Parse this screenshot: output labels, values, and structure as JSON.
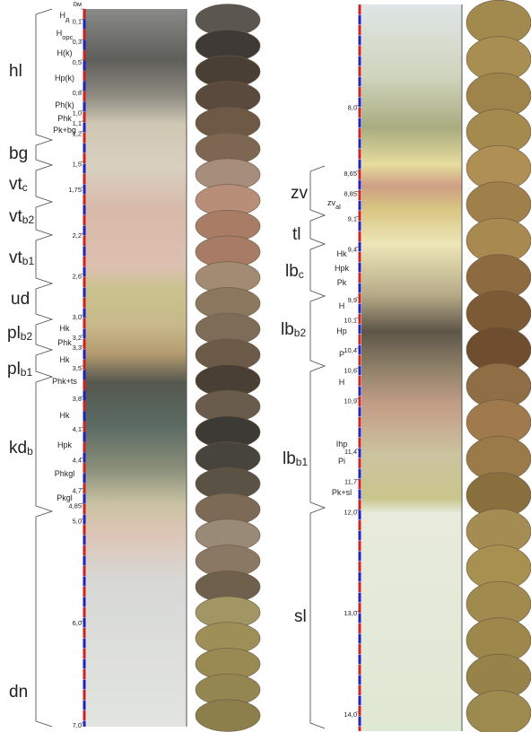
{
  "left": {
    "depth_ticks": [
      {
        "value": 0,
        "label": "0м"
      },
      {
        "value": 0.1,
        "label": "0,1"
      },
      {
        "value": 0.3,
        "label": "0,3"
      },
      {
        "value": 0.5,
        "label": "0,5"
      },
      {
        "value": 0.8,
        "label": "0,8"
      },
      {
        "value": 1.0,
        "label": "1,0"
      },
      {
        "value": 1.1,
        "label": "1,1"
      },
      {
        "value": 1.2,
        "label": "1,2"
      },
      {
        "value": 1.5,
        "label": "1,5"
      },
      {
        "value": 1.75,
        "label": "1,75"
      },
      {
        "value": 2.2,
        "label": "2,2"
      },
      {
        "value": 2.6,
        "label": "2,6"
      },
      {
        "value": 3.0,
        "label": "3,0"
      },
      {
        "value": 3.2,
        "label": "3,2"
      },
      {
        "value": 3.3,
        "label": "3,3"
      },
      {
        "value": 3.5,
        "label": "3,5"
      },
      {
        "value": 3.8,
        "label": "3,8"
      },
      {
        "value": 4.1,
        "label": "4,1"
      },
      {
        "value": 4.4,
        "label": "4,4"
      },
      {
        "value": 4.7,
        "label": "4,7"
      },
      {
        "value": 4.85,
        "label": "4,85"
      },
      {
        "value": 5.0,
        "label": "5,0"
      },
      {
        "value": 6.0,
        "label": "6,0"
      },
      {
        "value": 7.0,
        "label": "7,0"
      }
    ],
    "horizons": [
      {
        "label": "H",
        "sub": "д"
      },
      {
        "label": "H",
        "sub": "орс"
      },
      {
        "label": "H(k)"
      },
      {
        "label": "Hp(k)"
      },
      {
        "label": "Ph(k)"
      },
      {
        "label": "Phk"
      },
      {
        "label": "Pk+bg"
      },
      {
        "label": "Hk"
      },
      {
        "label": "Phk"
      },
      {
        "label": "Hk"
      },
      {
        "label": "Phk+ts"
      },
      {
        "label": "Hk"
      },
      {
        "label": "Hpk"
      },
      {
        "label": "Phkgl"
      },
      {
        "label": "Pkgl"
      }
    ],
    "units": [
      {
        "label": "hl"
      },
      {
        "label": "bg"
      },
      {
        "label": "vt",
        "sub": "c"
      },
      {
        "label": "vt",
        "sub": "b2"
      },
      {
        "label": "vt",
        "sub": "b1"
      },
      {
        "label": "ud"
      },
      {
        "label": "pl",
        "sub": "b2"
      },
      {
        "label": "pl",
        "sub": "b1"
      },
      {
        "label": "kd",
        "sub": "b"
      },
      {
        "label": "dn"
      }
    ]
  },
  "right": {
    "depth_ticks": [
      {
        "value": 8.0,
        "label": "8,0"
      },
      {
        "value": 8.65,
        "label": "8,65"
      },
      {
        "value": 8.85,
        "label": "8,85"
      },
      {
        "value": 9.1,
        "label": "9,1"
      },
      {
        "value": 9.4,
        "label": "9,4"
      },
      {
        "value": 9.9,
        "label": "9,9"
      },
      {
        "value": 10.1,
        "label": "10,1"
      },
      {
        "value": 10.4,
        "label": "10,4"
      },
      {
        "value": 10.6,
        "label": "10,6"
      },
      {
        "value": 10.9,
        "label": "10,9"
      },
      {
        "value": 11.4,
        "label": "11,4"
      },
      {
        "value": 11.7,
        "label": "11,7"
      },
      {
        "value": 12.0,
        "label": "12,0"
      },
      {
        "value": 13.0,
        "label": "13,0"
      },
      {
        "value": 14.0,
        "label": "14,0"
      }
    ],
    "horizons": [
      {
        "label": "Hk"
      },
      {
        "label": "Hpk"
      },
      {
        "label": "Pk"
      },
      {
        "label": "H"
      },
      {
        "label": "Hp"
      },
      {
        "label": "P"
      },
      {
        "label": "H"
      },
      {
        "label": "Ihp"
      },
      {
        "label": "Pi"
      },
      {
        "label": "Pk+sl"
      }
    ],
    "units": [
      {
        "label": "zv"
      },
      {
        "label": "zv",
        "sub": "al"
      },
      {
        "label": "tl"
      },
      {
        "label": "lb",
        "sub": "c"
      },
      {
        "label": "lb",
        "sub": "b2"
      },
      {
        "label": "lb",
        "sub": "b1"
      },
      {
        "label": "sl"
      }
    ]
  }
}
